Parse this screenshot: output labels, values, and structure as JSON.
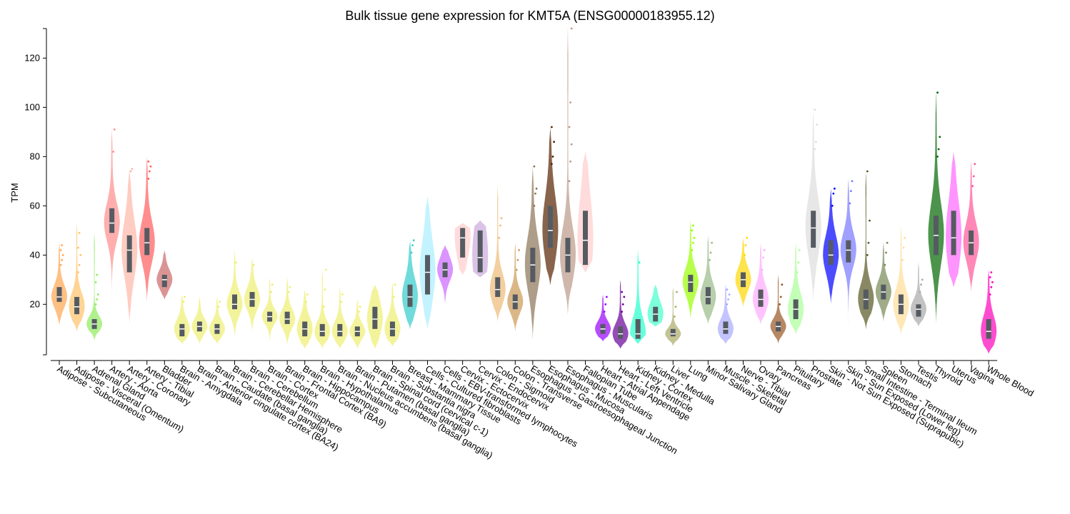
{
  "chart_data": {
    "type": "violin",
    "title": "Bulk tissue gene expression for KMT5A (ENSG00000183955.12)",
    "ylabel": "TPM",
    "xlabel": "",
    "ylim": [
      -0.5,
      132
    ],
    "yticks": [
      20,
      40,
      60,
      80,
      100,
      120
    ],
    "grid": false,
    "legend": "none",
    "series": [
      {
        "name": "Adipose - Subcutaneous",
        "color": "#FFA54F",
        "min": 11,
        "q1": 21,
        "median": 23,
        "q3": 27,
        "max": 45,
        "outliers": [
          36,
          38,
          40,
          42,
          44
        ]
      },
      {
        "name": "Adipose - Visceral (Omentum)",
        "color": "#FFC266",
        "min": 9,
        "q1": 16,
        "median": 19,
        "q3": 23,
        "max": 53,
        "outliers": [
          33,
          36,
          40,
          43,
          49
        ]
      },
      {
        "name": "Adrenal Gland",
        "color": "#8FEB5D",
        "min": 5,
        "q1": 10,
        "median": 12,
        "q3": 14,
        "max": 49,
        "outliers": [
          20,
          22,
          24,
          29,
          32
        ]
      },
      {
        "name": "Artery - Aorta",
        "color": "#FF8C8C",
        "min": 23,
        "q1": 49,
        "median": 53,
        "q3": 59,
        "max": 91,
        "outliers": [
          82,
          91
        ]
      },
      {
        "name": "Artery - Coronary",
        "color": "#FFB6A6",
        "min": 12,
        "q1": 33,
        "median": 42,
        "q3": 48,
        "max": 75,
        "outliers": [
          74,
          75
        ]
      },
      {
        "name": "Artery - Tibial",
        "color": "#FF5C5C",
        "min": 21,
        "q1": 40,
        "median": 45,
        "q3": 51,
        "max": 80,
        "outliers": [
          71,
          74,
          76,
          78
        ]
      },
      {
        "name": "Bladder",
        "color": "#CC6666",
        "min": 22,
        "q1": 27,
        "median": 30,
        "q3": 32,
        "max": 42,
        "outliers": []
      },
      {
        "name": "Brain - Amygdala",
        "color": "#EEEE70",
        "min": 4,
        "q1": 7,
        "median": 10,
        "q3": 12,
        "max": 24,
        "outliers": [
          21,
          23
        ]
      },
      {
        "name": "Brain - Anterior cingulate cortex (BA24)",
        "color": "#EEEE70",
        "min": 4,
        "q1": 9,
        "median": 11,
        "q3": 13,
        "max": 23,
        "outliers": []
      },
      {
        "name": "Brain - Caudate (basal ganglia)",
        "color": "#EEEE70",
        "min": 4,
        "q1": 8,
        "median": 10,
        "q3": 12,
        "max": 23,
        "outliers": [
          19,
          21
        ]
      },
      {
        "name": "Brain - Cerebellar Hemisphere",
        "color": "#EEEE70",
        "min": 6,
        "q1": 18,
        "median": 20,
        "q3": 24,
        "max": 42,
        "outliers": [
          37
        ]
      },
      {
        "name": "Brain - Cerebellum",
        "color": "#EEEE70",
        "min": 9,
        "q1": 19,
        "median": 22,
        "q3": 25,
        "max": 39,
        "outliers": [
          36
        ]
      },
      {
        "name": "Brain - Cortex",
        "color": "#EEEE70",
        "min": 4,
        "q1": 13,
        "median": 15,
        "q3": 17,
        "max": 31,
        "outliers": [
          25,
          28
        ]
      },
      {
        "name": "Brain - Frontal Cortex (BA9)",
        "color": "#EEEE70",
        "min": 3,
        "q1": 12,
        "median": 14,
        "q3": 17,
        "max": 31,
        "outliers": [
          25,
          27
        ]
      },
      {
        "name": "Brain - Hippocampus",
        "color": "#EEEE70",
        "min": 2,
        "q1": 7,
        "median": 10,
        "q3": 13,
        "max": 26,
        "outliers": [
          21,
          24
        ]
      },
      {
        "name": "Brain - Hypothalamus",
        "color": "#EEEE70",
        "min": 2,
        "q1": 7,
        "median": 9,
        "q3": 12,
        "max": 34,
        "outliers": [
          19,
          26,
          34
        ]
      },
      {
        "name": "Brain - Nucleus accumbens (basal ganglia)",
        "color": "#EEEE70",
        "min": 2,
        "q1": 7,
        "median": 9,
        "q3": 12,
        "max": 27,
        "outliers": [
          21,
          24
        ]
      },
      {
        "name": "Brain - Putamen (basal ganglia)",
        "color": "#EEEE70",
        "min": 2,
        "q1": 7,
        "median": 9,
        "q3": 11,
        "max": 22,
        "outliers": [
          17,
          19
        ]
      },
      {
        "name": "Brain - Spinal cord (cervical c-1)",
        "color": "#EEEE70",
        "min": 2,
        "q1": 10,
        "median": 14,
        "q3": 19,
        "max": 28,
        "outliers": []
      },
      {
        "name": "Brain - Substantia nigra",
        "color": "#EEEE70",
        "min": 3,
        "q1": 7,
        "median": 10,
        "q3": 13,
        "max": 29,
        "outliers": [
          23,
          28
        ]
      },
      {
        "name": "Breast - Mammary Tissue",
        "color": "#33CCCC",
        "min": 10,
        "q1": 19,
        "median": 23,
        "q3": 28,
        "max": 46,
        "outliers": [
          41,
          44,
          46
        ]
      },
      {
        "name": "Cells - Cultured fibroblasts",
        "color": "#AAEEFF",
        "min": 10,
        "q1": 24,
        "median": 33,
        "q3": 40,
        "max": 64,
        "outliers": []
      },
      {
        "name": "Cells - EBV-transformed lymphocytes",
        "color": "#CC66FF",
        "min": 20,
        "q1": 31,
        "median": 34,
        "q3": 37,
        "max": 44,
        "outliers": []
      },
      {
        "name": "Cervix - Ectocervix",
        "color": "#FFCCCC",
        "min": 32,
        "q1": 39,
        "median": 47,
        "q3": 51,
        "max": 53,
        "outliers": []
      },
      {
        "name": "Cervix - Endocervix",
        "color": "#CCAADD",
        "min": 31,
        "q1": 33,
        "median": 39,
        "q3": 50,
        "max": 54,
        "outliers": []
      },
      {
        "name": "Colon - Sigmoid",
        "color": "#EEBB77",
        "min": 13,
        "q1": 23,
        "median": 26,
        "q3": 31,
        "max": 68,
        "outliers": [
          47,
          52,
          55
        ]
      },
      {
        "name": "Colon - Transverse",
        "color": "#CC9955",
        "min": 9,
        "q1": 18,
        "median": 21,
        "q3": 24,
        "max": 45,
        "outliers": [
          34,
          38,
          42
        ]
      },
      {
        "name": "Esophagus - Gastroesophageal Junction",
        "color": "#8B7355",
        "min": 6,
        "q1": 29,
        "median": 36,
        "q3": 43,
        "max": 76,
        "outliers": [
          60,
          65,
          67,
          76
        ]
      },
      {
        "name": "Esophagus - Mucosa",
        "color": "#552200",
        "min": 28,
        "q1": 43,
        "median": 50,
        "q3": 60,
        "max": 92,
        "outliers": [
          77,
          80,
          86,
          92
        ]
      },
      {
        "name": "Esophagus - Muscularis",
        "color": "#BB9988",
        "min": 16,
        "q1": 33,
        "median": 40,
        "q3": 47,
        "max": 132,
        "outliers": [
          70,
          78,
          85,
          92,
          102,
          132
        ]
      },
      {
        "name": "Fallopian Tube",
        "color": "#FFCCCC",
        "min": 33,
        "q1": 36,
        "median": 46,
        "q3": 58,
        "max": 82,
        "outliers": []
      },
      {
        "name": "Heart - Atrial Appendage",
        "color": "#9900FF",
        "min": 5,
        "q1": 8,
        "median": 10,
        "q3": 12,
        "max": 24,
        "outliers": [
          17,
          20,
          23
        ]
      },
      {
        "name": "Heart - Left Ventricle",
        "color": "#660099",
        "min": 2,
        "q1": 6,
        "median": 8,
        "q3": 11,
        "max": 30,
        "outliers": [
          17,
          20,
          23,
          25
        ]
      },
      {
        "name": "Kidney - Cortex",
        "color": "#22FFCC",
        "min": 4,
        "q1": 6,
        "median": 8,
        "q3": 14,
        "max": 42,
        "outliers": [
          37
        ]
      },
      {
        "name": "Kidney - Medulla",
        "color": "#44FFCC",
        "min": 11,
        "q1": 13,
        "median": 16,
        "q3": 19,
        "max": 28,
        "outliers": []
      },
      {
        "name": "Liver",
        "color": "#AAAA66",
        "min": 3,
        "q1": 7,
        "median": 8,
        "q3": 10,
        "max": 27,
        "outliers": [
          15,
          19,
          25
        ]
      },
      {
        "name": "Lung",
        "color": "#99FF00",
        "min": 14,
        "q1": 25,
        "median": 29,
        "q3": 32,
        "max": 54,
        "outliers": [
          42,
          45,
          47,
          50,
          52
        ]
      },
      {
        "name": "Minor Salivary Gland",
        "color": "#99BB88",
        "min": 12,
        "q1": 20,
        "median": 23,
        "q3": 27,
        "max": 48,
        "outliers": [
          38,
          41,
          45
        ]
      },
      {
        "name": "Muscle - Skeletal",
        "color": "#AAAAFF",
        "min": 4,
        "q1": 8,
        "median": 10,
        "q3": 13,
        "max": 28,
        "outliers": [
          20,
          22,
          24,
          26
        ]
      },
      {
        "name": "Nerve - Tibial",
        "color": "#FFD700",
        "min": 19,
        "q1": 27,
        "median": 30,
        "q3": 33,
        "max": 47,
        "outliers": [
          40,
          44,
          47
        ]
      },
      {
        "name": "Ovary",
        "color": "#FFAAFF",
        "min": 12,
        "q1": 19,
        "median": 22,
        "q3": 26,
        "max": 45,
        "outliers": [
          34,
          39,
          42
        ]
      },
      {
        "name": "Pancreas",
        "color": "#995522",
        "min": 4,
        "q1": 9,
        "median": 11,
        "q3": 13,
        "max": 32,
        "outliers": [
          20,
          23,
          28
        ]
      },
      {
        "name": "Pituitary",
        "color": "#AAFF99",
        "min": 8,
        "q1": 14,
        "median": 18,
        "q3": 22,
        "max": 45,
        "outliers": [
          33,
          37,
          42
        ]
      },
      {
        "name": "Prostate",
        "color": "#DDDDDD",
        "min": 21,
        "q1": 43,
        "median": 51,
        "q3": 58,
        "max": 99,
        "outliers": [
          83,
          86,
          93,
          99
        ]
      },
      {
        "name": "Skin - Not Sun Exposed (Suprapubic)",
        "color": "#0000FF",
        "min": 20,
        "q1": 36,
        "median": 40,
        "q3": 46,
        "max": 67,
        "outliers": [
          60,
          65,
          67
        ]
      },
      {
        "name": "Skin - Sun Exposed (Lower leg)",
        "color": "#7777FF",
        "min": 12,
        "q1": 37,
        "median": 42,
        "q3": 46,
        "max": 71,
        "outliers": [
          61,
          66,
          70
        ]
      },
      {
        "name": "Small Intestine - Terminal Ileum",
        "color": "#555522",
        "min": 10,
        "q1": 18,
        "median": 22,
        "q3": 26,
        "max": 74,
        "outliers": [
          40,
          45,
          54,
          74
        ]
      },
      {
        "name": "Spleen",
        "color": "#778855",
        "min": 13,
        "q1": 22,
        "median": 25,
        "q3": 28,
        "max": 45,
        "outliers": [
          36,
          41,
          45
        ]
      },
      {
        "name": "Stomach",
        "color": "#FFDD99",
        "min": 8,
        "q1": 16,
        "median": 20,
        "q3": 24,
        "max": 52,
        "outliers": [
          38,
          43,
          47
        ]
      },
      {
        "name": "Testis",
        "color": "#AAAAAA",
        "min": 11,
        "q1": 15,
        "median": 18,
        "q3": 20,
        "max": 37,
        "outliers": [
          25,
          28,
          30
        ]
      },
      {
        "name": "Thyroid",
        "color": "#006600",
        "min": 12,
        "q1": 40,
        "median": 48,
        "q3": 56,
        "max": 106,
        "outliers": [
          80,
          83,
          88,
          106
        ]
      },
      {
        "name": "Uterus",
        "color": "#FF66FF",
        "min": 27,
        "q1": 40,
        "median": 47,
        "q3": 58,
        "max": 82,
        "outliers": []
      },
      {
        "name": "Vagina",
        "color": "#FF5599",
        "min": 25,
        "q1": 40,
        "median": 45,
        "q3": 50,
        "max": 78,
        "outliers": [
          68,
          72,
          77
        ]
      },
      {
        "name": "Whole Blood",
        "color": "#FF00BB",
        "min": 0,
        "q1": 6,
        "median": 9,
        "q3": 14,
        "max": 34,
        "outliers": [
          24,
          27,
          29,
          31,
          33
        ]
      }
    ]
  }
}
